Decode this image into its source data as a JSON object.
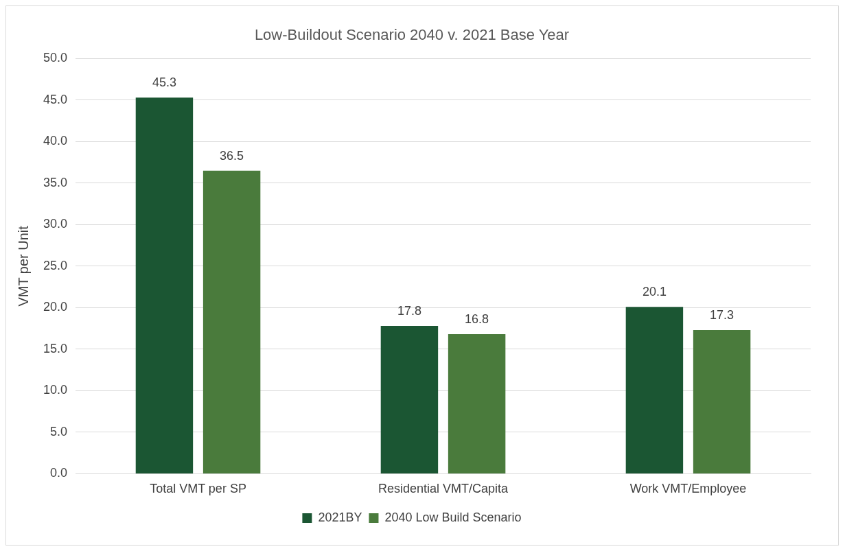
{
  "chart_data": {
    "type": "bar",
    "title": "Low-Buildout Scenario 2040 v. 2021 Base Year",
    "ylabel": "VMT per Unit",
    "categories": [
      "Total VMT per SP",
      "Residential VMT/Capita",
      "Work VMT/Employee"
    ],
    "series": [
      {
        "name": "2021BY",
        "color": "#1b5633",
        "values": [
          45.3,
          17.8,
          20.1
        ]
      },
      {
        "name": "2040 Low Build Scenario",
        "color": "#4a7b3c",
        "values": [
          36.5,
          16.8,
          17.3
        ]
      }
    ],
    "ylim": [
      0,
      50
    ],
    "yticks": [
      {
        "value": 0,
        "label": "0.0"
      },
      {
        "value": 5,
        "label": "5.0"
      },
      {
        "value": 10,
        "label": "10.0"
      },
      {
        "value": 15,
        "label": "15.0"
      },
      {
        "value": 20,
        "label": "20.0"
      },
      {
        "value": 25,
        "label": "25.0"
      },
      {
        "value": 30,
        "label": "30.0"
      },
      {
        "value": 35,
        "label": "35.0"
      },
      {
        "value": 40,
        "label": "40.0"
      },
      {
        "value": 45,
        "label": "45.0"
      },
      {
        "value": 50,
        "label": "50.0"
      }
    ],
    "grid": "y",
    "legend": "bottom",
    "data_labels": true
  }
}
